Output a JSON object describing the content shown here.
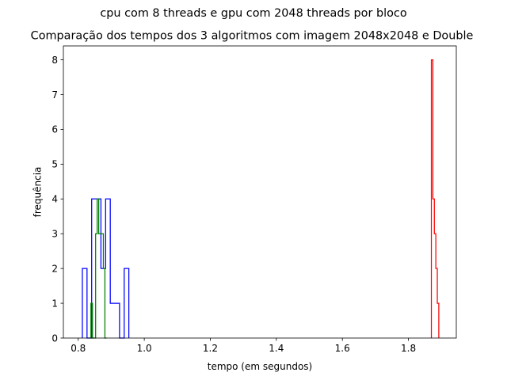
{
  "chart_data": {
    "type": "histogram",
    "suptitle": "cpu com 8 threads e gpu com 2048 threads por bloco",
    "title": "Comparação dos tempos dos 3 algoritmos com imagem 2048x2048 e Double",
    "xlabel": "tempo (em segundos)",
    "ylabel": "frequência",
    "xlim": [
      0.755,
      1.945
    ],
    "ylim": [
      0,
      8.4
    ],
    "xticks": [
      0.8,
      1.0,
      1.2,
      1.4,
      1.6,
      1.8
    ],
    "xtick_labels": [
      "0.8",
      "1.0",
      "1.2",
      "1.4",
      "1.6",
      "1.8"
    ],
    "yticks": [
      0,
      1,
      2,
      3,
      4,
      5,
      6,
      7,
      8
    ],
    "ytick_labels": [
      "0",
      "1",
      "2",
      "3",
      "4",
      "5",
      "6",
      "7",
      "8"
    ],
    "grid": false,
    "histtype": "step",
    "series": [
      {
        "color": "#0000ff",
        "bin_edges": [
          0.8125,
          0.8266,
          0.8407,
          0.8547,
          0.8688,
          0.8829,
          0.897,
          0.9111,
          0.9251,
          0.9392,
          0.9533
        ],
        "counts": [
          2,
          0,
          4,
          4,
          2,
          4,
          1,
          1,
          0,
          2
        ]
      },
      {
        "color": "#008000",
        "bin_edges": [
          0.8385,
          0.8432,
          0.8479,
          0.8526,
          0.8573,
          0.862,
          0.8667,
          0.8714,
          0.8761,
          0.8808,
          0.8855
        ],
        "counts": [
          1,
          0,
          0,
          3,
          4,
          3,
          3,
          3,
          2,
          0
        ]
      },
      {
        "color": "#ff0000",
        "bin_edges": [
          1.8695,
          1.874,
          1.8785,
          1.883,
          1.8875,
          1.892
        ],
        "counts": [
          8,
          4,
          3,
          2,
          1
        ]
      }
    ]
  }
}
